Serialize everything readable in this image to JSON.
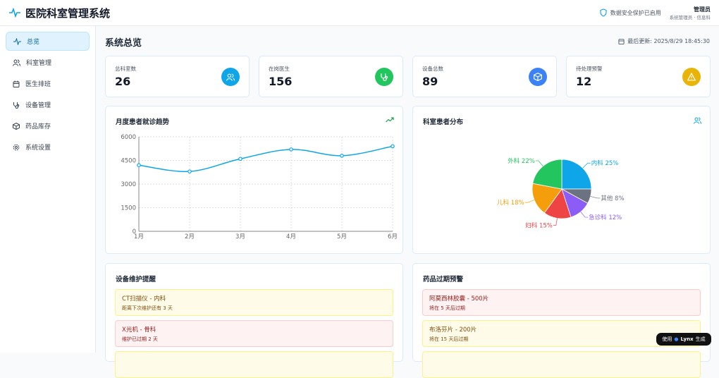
{
  "header": {
    "title": "医院科室管理系统",
    "security": "数据安全保护已启用",
    "user_name": "管理员",
    "user_role": "系统管理员 · 信息科"
  },
  "sidebar": {
    "items": [
      {
        "label": "总览",
        "icon": "activity-icon"
      },
      {
        "label": "科室管理",
        "icon": "users-icon"
      },
      {
        "label": "医生排班",
        "icon": "calendar-icon"
      },
      {
        "label": "设备管理",
        "icon": "stethoscope-icon"
      },
      {
        "label": "药品库存",
        "icon": "package-icon"
      },
      {
        "label": "系统设置",
        "icon": "gear-icon"
      }
    ]
  },
  "page": {
    "title": "系统总览",
    "updated": "最后更新: 2025/8/29 18:45:30"
  },
  "stats": [
    {
      "label": "总科室数",
      "value": "26",
      "color": "#0ea5e9"
    },
    {
      "label": "在岗医生",
      "value": "156",
      "color": "#22c55e"
    },
    {
      "label": "设备总数",
      "value": "89",
      "color": "#3b82f6"
    },
    {
      "label": "待处理预警",
      "value": "12",
      "color": "#eab308"
    }
  ],
  "trend_panel": {
    "title": "月度患者就诊趋势"
  },
  "dist_panel": {
    "title": "科室患者分布"
  },
  "chart_data": [
    {
      "type": "line",
      "categories": [
        "1月",
        "2月",
        "3月",
        "4月",
        "5月",
        "6月"
      ],
      "values": [
        4200,
        3800,
        4600,
        5200,
        4800,
        5400
      ],
      "ylim": [
        0,
        6000
      ],
      "yticks": [
        "0",
        "1500",
        "3000",
        "4500",
        "6000"
      ],
      "grid": true,
      "color": "#0ea5e9"
    },
    {
      "type": "pie",
      "slices": [
        {
          "label": "内科",
          "value": 25,
          "color": "#0ea5e9",
          "text": "内科 25%"
        },
        {
          "label": "其他",
          "value": 8,
          "color": "#6b7280",
          "text": "其他 8%"
        },
        {
          "label": "急诊科",
          "value": 12,
          "color": "#8b5cf6",
          "text": "急诊科 12%"
        },
        {
          "label": "妇科",
          "value": 15,
          "color": "#ef4444",
          "text": "妇科 15%"
        },
        {
          "label": "儿科",
          "value": 18,
          "color": "#f59e0b",
          "text": "儿科 18%"
        },
        {
          "label": "外科",
          "value": 22,
          "color": "#22c55e",
          "text": "外科 22%"
        }
      ]
    }
  ],
  "maintenance": {
    "title": "设备维护提醒",
    "items": [
      {
        "title": "CT扫描仪 - 内科",
        "sub": "距离下次维护还有 3 天",
        "level": "warn"
      },
      {
        "title": "X光机 - 骨科",
        "sub": "维护已过期 2 天",
        "level": "err"
      }
    ]
  },
  "expiry": {
    "title": "药品过期预警",
    "items": [
      {
        "title": "阿莫西林胶囊 - 500片",
        "sub": "将在 5 天后过期",
        "level": "err"
      },
      {
        "title": "布洛芬片 - 200片",
        "sub": "将在 15 天后过期",
        "level": "warn"
      }
    ]
  },
  "badge": {
    "pre": "使用",
    "brand": "Lynx",
    "post": "生成"
  }
}
